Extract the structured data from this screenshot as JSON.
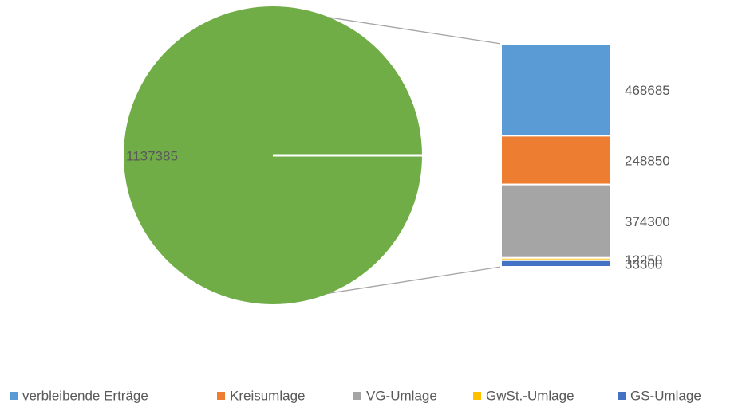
{
  "chart_data": {
    "type": "bar-of-pie",
    "other_value": 1137385,
    "other_color": "#70ad47",
    "categories": [
      "verbleibende Erträge",
      "Kreisumlage",
      "VG-Umlage",
      "GwSt.-Umlage",
      "GS-Umlage"
    ],
    "values": [
      468685,
      248850,
      374300,
      12250,
      33300
    ],
    "colors": [
      "#5b9bd5",
      "#ed7d31",
      "#a5a5a5",
      "#ffc000",
      "#4472c4"
    ],
    "legend": "bottom"
  }
}
